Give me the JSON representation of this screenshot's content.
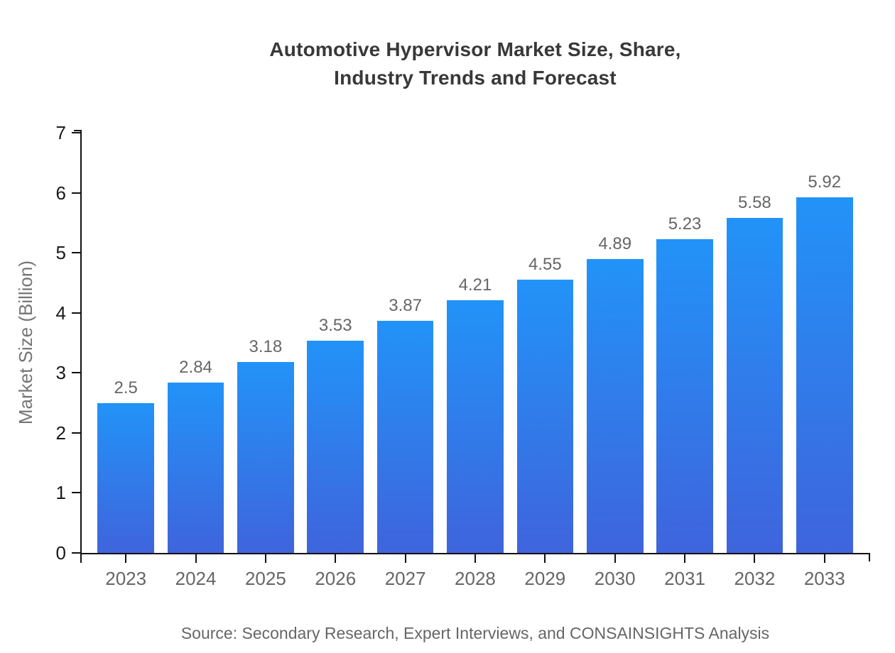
{
  "title": {
    "line1": "Automotive Hypervisor Market Size, Share,",
    "line2": "Industry Trends and Forecast"
  },
  "source": "Source: Secondary Research, Expert Interviews, and CONSAINSIGHTS Analysis",
  "chart_data": {
    "type": "bar",
    "title": "Automotive Hypervisor Market Size, Share, Industry Trends and Forecast",
    "categories": [
      "2023",
      "2024",
      "2025",
      "2026",
      "2027",
      "2028",
      "2029",
      "2030",
      "2031",
      "2032",
      "2033"
    ],
    "values": [
      2.5,
      2.84,
      3.18,
      3.53,
      3.87,
      4.21,
      4.55,
      4.89,
      5.23,
      5.58,
      5.92
    ],
    "value_labels": [
      "2.5",
      "2.84",
      "3.18",
      "3.53",
      "3.87",
      "4.21",
      "4.55",
      "4.89",
      "5.23",
      "5.58",
      "5.92"
    ],
    "xlabel": "",
    "ylabel": "Market Size (Billion)",
    "ylim": [
      0,
      7
    ],
    "yticks": [
      0,
      1,
      2,
      3,
      4,
      5,
      6,
      7
    ],
    "grid": false,
    "legend": "none"
  },
  "colors": {
    "bar_gradient_top": "#2293f8",
    "bar_gradient_bottom": "#3f64dc",
    "axis": "#111111",
    "title_text": "#383838",
    "axis_label_text": "#666666",
    "y_axis_title_text": "#757575",
    "source_text": "#666666"
  }
}
